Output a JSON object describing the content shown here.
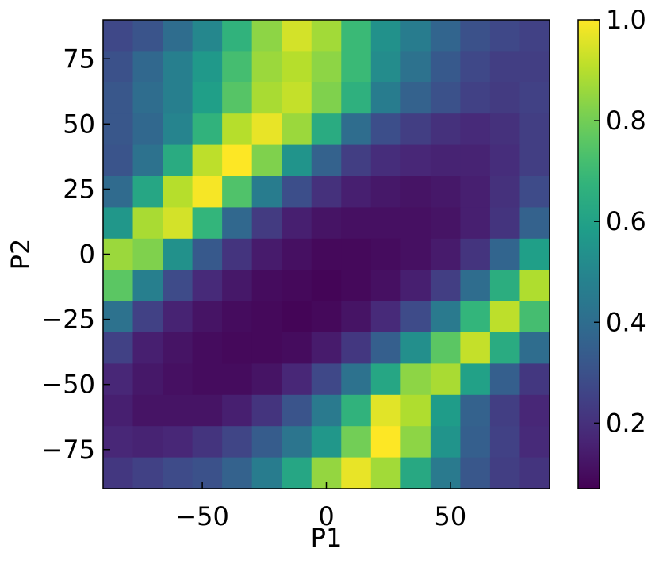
{
  "chart_data": {
    "type": "heatmap",
    "title": "",
    "xlabel": "P1",
    "ylabel": "P2",
    "xlim": [
      -90,
      90
    ],
    "ylim": [
      -90,
      90
    ],
    "grid": false,
    "colormap": "viridis",
    "color_range": [
      0.07,
      1.0
    ],
    "x_centers": [
      -84,
      -72,
      -60,
      -48,
      -36,
      -24,
      -12,
      0,
      12,
      24,
      36,
      48,
      60,
      72,
      84
    ],
    "y_centers": [
      84,
      72,
      60,
      48,
      36,
      24,
      12,
      0,
      -12,
      -24,
      -36,
      -48,
      -60,
      -72,
      -84
    ],
    "values": [
      [
        0.27,
        0.31,
        0.4,
        0.5,
        0.67,
        0.84,
        0.94,
        0.87,
        0.7,
        0.54,
        0.46,
        0.37,
        0.3,
        0.27,
        0.25
      ],
      [
        0.3,
        0.38,
        0.47,
        0.57,
        0.72,
        0.86,
        0.9,
        0.84,
        0.7,
        0.52,
        0.42,
        0.33,
        0.27,
        0.24,
        0.24
      ],
      [
        0.32,
        0.4,
        0.47,
        0.59,
        0.75,
        0.88,
        0.92,
        0.82,
        0.66,
        0.46,
        0.36,
        0.3,
        0.25,
        0.23,
        0.25
      ],
      [
        0.32,
        0.38,
        0.49,
        0.67,
        0.9,
        0.97,
        0.86,
        0.64,
        0.4,
        0.29,
        0.24,
        0.2,
        0.18,
        0.2,
        0.24
      ],
      [
        0.31,
        0.42,
        0.64,
        0.91,
        1.0,
        0.82,
        0.55,
        0.36,
        0.24,
        0.19,
        0.17,
        0.16,
        0.16,
        0.19,
        0.24
      ],
      [
        0.39,
        0.62,
        0.9,
        0.99,
        0.74,
        0.46,
        0.29,
        0.2,
        0.15,
        0.13,
        0.12,
        0.13,
        0.15,
        0.2,
        0.28
      ],
      [
        0.56,
        0.88,
        0.94,
        0.68,
        0.38,
        0.23,
        0.15,
        0.12,
        0.11,
        0.11,
        0.11,
        0.12,
        0.15,
        0.21,
        0.36
      ],
      [
        0.86,
        0.82,
        0.54,
        0.33,
        0.21,
        0.14,
        0.11,
        0.09,
        0.09,
        0.1,
        0.11,
        0.14,
        0.21,
        0.37,
        0.59
      ],
      [
        0.76,
        0.47,
        0.28,
        0.18,
        0.13,
        0.1,
        0.09,
        0.08,
        0.09,
        0.11,
        0.15,
        0.24,
        0.4,
        0.65,
        0.89
      ],
      [
        0.42,
        0.25,
        0.16,
        0.12,
        0.1,
        0.09,
        0.08,
        0.09,
        0.12,
        0.18,
        0.28,
        0.45,
        0.68,
        0.91,
        0.72
      ],
      [
        0.25,
        0.15,
        0.12,
        0.1,
        0.09,
        0.09,
        0.1,
        0.14,
        0.22,
        0.35,
        0.53,
        0.76,
        0.92,
        0.64,
        0.4
      ],
      [
        0.17,
        0.13,
        0.11,
        0.1,
        0.1,
        0.12,
        0.17,
        0.27,
        0.42,
        0.62,
        0.84,
        0.88,
        0.6,
        0.35,
        0.22
      ],
      [
        0.15,
        0.12,
        0.12,
        0.12,
        0.15,
        0.21,
        0.31,
        0.45,
        0.67,
        0.96,
        0.89,
        0.58,
        0.36,
        0.24,
        0.17
      ],
      [
        0.17,
        0.16,
        0.17,
        0.21,
        0.26,
        0.34,
        0.43,
        0.56,
        0.8,
        1.0,
        0.84,
        0.55,
        0.35,
        0.25,
        0.18
      ],
      [
        0.22,
        0.25,
        0.28,
        0.3,
        0.36,
        0.46,
        0.62,
        0.85,
        0.97,
        0.87,
        0.63,
        0.45,
        0.32,
        0.24,
        0.21
      ]
    ],
    "x_ticks": [
      {
        "value": -50,
        "label": "−50"
      },
      {
        "value": 0,
        "label": "0"
      },
      {
        "value": 50,
        "label": "50"
      }
    ],
    "y_ticks": [
      {
        "value": 75,
        "label": "75"
      },
      {
        "value": 50,
        "label": "50"
      },
      {
        "value": 25,
        "label": "25"
      },
      {
        "value": 0,
        "label": "0"
      },
      {
        "value": -25,
        "label": "−25"
      },
      {
        "value": -50,
        "label": "−50"
      },
      {
        "value": -75,
        "label": "−75"
      }
    ],
    "colorbar": {
      "ticks": [
        {
          "value": 1.0,
          "label": "1.0"
        },
        {
          "value": 0.8,
          "label": "0.8"
        },
        {
          "value": 0.6,
          "label": "0.6"
        },
        {
          "value": 0.4,
          "label": "0.4"
        },
        {
          "value": 0.2,
          "label": "0.2"
        }
      ]
    }
  }
}
